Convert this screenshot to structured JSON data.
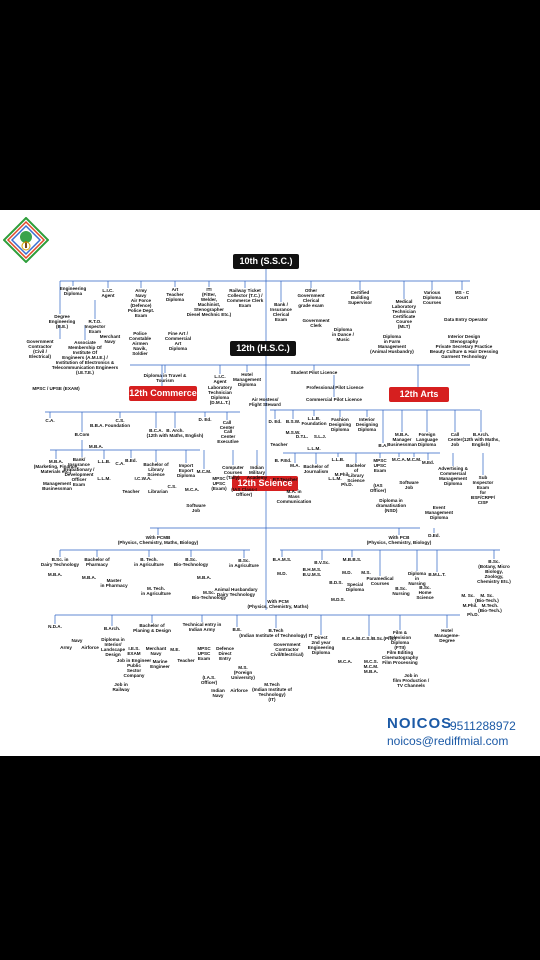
{
  "brand": {
    "name": "NOICOS",
    "phone": "9511288972",
    "email": "noicos@rediffmial.com"
  },
  "logo_icon": "tree-globe-logo-icon",
  "headers": {
    "ssc": "10th (S.S.C.)",
    "hsc": "12th (H.S.C.)",
    "commerce": "12th Commerce",
    "arts": "12th Arts",
    "science": "12th Science"
  },
  "colors": {
    "dark": "#111111",
    "red": "#d61f1f",
    "brand": "#1c5aa6",
    "years": "#cc0000"
  },
  "nodes": [
    {
      "id": "eng_dip",
      "text": "Engineering\nDiploma"
    },
    {
      "id": "lic1",
      "text": "L.I.C.\nAgent"
    },
    {
      "id": "army1",
      "text": "Army\nNavy\nAir Force\n(Defence)\nPolice Dept.\nExam"
    },
    {
      "id": "art_teacher",
      "text": "Art\nTeacher\nDiploma"
    },
    {
      "id": "iti",
      "text": "ITI\n(Fitter,\nWelder,\nMachinist,\nStenographer\nDiesel Mechnic Etc.)"
    },
    {
      "id": "railway",
      "text": "Railway Ticket\nCollector (T.C.) /\nCommerce Clerk\nExam"
    },
    {
      "id": "bank1",
      "text": "Bank /\nInsurance\nClerical\nExam"
    },
    {
      "id": "govt",
      "text": "Other\nGovernment\nClerical\ngrade exam"
    },
    {
      "id": "cert_bs",
      "text": "Certified\nBuilding\nSupervisor"
    },
    {
      "id": "various",
      "text": "Various\nDiploma\nCourses"
    },
    {
      "id": "msc_course",
      "text": "MS - C\nCourt"
    },
    {
      "id": "med_lab",
      "text": "Medical\nLaboratory\nTechnician\nCertificate\nCourse\n(MLT)"
    },
    {
      "id": "data_entry",
      "text": "Data Entry Operator"
    },
    {
      "id": "interior",
      "text": "Interior Design\nStenography\nPrivate Secretary Practice\nBeauty Culture & Hair Dressing\nGarment Technology"
    },
    {
      "id": "farm",
      "text": "Diploma\nin Farm\nManagement\n(Animal Husbandry)"
    },
    {
      "id": "dance",
      "text": "Diploma\nin Dance /\nMusic"
    },
    {
      "id": "gclerk",
      "text": "Government\nClerk"
    },
    {
      "id": "degree_eng",
      "text": "Degree\nEngineering\n(B.E.)"
    },
    {
      "id": "rto",
      "text": "R.T.O.\nInspector\nExam"
    },
    {
      "id": "merchant1",
      "text": "Merchant\nNavy"
    },
    {
      "id": "police",
      "text": "Police\nConstable\nAirmen\nNavik,\nSoldier"
    },
    {
      "id": "fine_art",
      "text": "Fine Art /\nCommercial\nArt\nDiploma"
    },
    {
      "id": "contractor1",
      "text": "Government\nContractor\n(Civil /\nElectrical)"
    },
    {
      "id": "associate",
      "text": "Associate\nMembership Of\nInstitute Of\nEngineers (A.M.I.E.) /\nInstitution of Electronics &\nTelecommunication Engineers\n(I.E.T.E.)"
    },
    {
      "id": "mpsc1",
      "text": "MPSC / UPSE (EXAM)"
    },
    {
      "id": "travel",
      "text": "Diploma in Travel &\nTourism"
    },
    {
      "id": "lic2",
      "text": "L.I.C.\nAgent"
    },
    {
      "id": "hotel",
      "text": "Hotel\nManagement\nDiploma"
    },
    {
      "id": "dmlt",
      "text": "Laboratory\nTechnician\nDiploma\n(D.M.L.T.)"
    },
    {
      "id": "air_hostess",
      "text": "Air Hostess/\nFlight Steward"
    },
    {
      "id": "pilot1",
      "text": "Student Pilot Licence"
    },
    {
      "id": "pilot2",
      "text": "Professional Pilot Licence"
    },
    {
      "id": "pilot3",
      "text": "Commercial Pilot Licence"
    },
    {
      "id": "ca",
      "text": "C.A."
    },
    {
      "id": "cs",
      "text": "C.S."
    },
    {
      "id": "bba",
      "text": "B.B.A. Foundation"
    },
    {
      "id": "bcom",
      "text": "B.Com"
    },
    {
      "id": "mba1",
      "text": "M.B.A."
    },
    {
      "id": "bca1",
      "text": "B.C.A."
    },
    {
      "id": "barch1",
      "text": "B. Arch.\n(12th with Maths, English)"
    },
    {
      "id": "ded1",
      "text": "D. Ed."
    },
    {
      "id": "callc1",
      "text": "Call\nCenter"
    },
    {
      "id": "cc_exec",
      "text": "Call\nCenter\nExecutive"
    },
    {
      "id": "bank2",
      "text": "Bank/\nInsurance\nProbationary /\nDevelopment\nOfficer\nExam"
    },
    {
      "id": "llb1",
      "text": "L.L.B."
    },
    {
      "id": "llm1",
      "text": "L.L.M."
    },
    {
      "id": "bed1",
      "text": "B.Ed."
    },
    {
      "id": "ca2",
      "text": "C.A."
    },
    {
      "id": "icwa",
      "text": "I.C.W.A."
    },
    {
      "id": "teacher1",
      "text": "Teacher"
    },
    {
      "id": "blib",
      "text": "Bachelor of\nLibrary\nScience"
    },
    {
      "id": "librarian",
      "text": "Librarian"
    },
    {
      "id": "import",
      "text": "Import\nExport\nDiploma"
    },
    {
      "id": "cs2",
      "text": "C.S."
    },
    {
      "id": "mcm",
      "text": "M.C.M."
    },
    {
      "id": "mca1",
      "text": "M.C.A."
    },
    {
      "id": "computer",
      "text": "Computer\nCourses\n(Tally)"
    },
    {
      "id": "military",
      "text": "Indian\nMilitary\nAcademy"
    },
    {
      "id": "mpsc2",
      "text": "MPSC\nUPSC\n(Exam)"
    },
    {
      "id": "ias1",
      "text": "(IAS Class-I\nOfficer)"
    },
    {
      "id": "software1",
      "text": "Software\nJob"
    },
    {
      "id": "mba_mkt",
      "text": "M.B.A.\n(Marketing, Finance,\nMaterials etc.)"
    },
    {
      "id": "mgmt",
      "text": "Management\nBusinessman"
    },
    {
      "id": "ded2",
      "text": "D. Ed."
    },
    {
      "id": "bsw",
      "text": "B.S.W."
    },
    {
      "id": "msw",
      "text": "M.S.W."
    },
    {
      "id": "teacher2",
      "text": "Teacher"
    },
    {
      "id": "llb2",
      "text": "L.L.B.\nFoundation"
    },
    {
      "id": "dtl",
      "text": "D.T.L."
    },
    {
      "id": "slj",
      "text": "S.L.J."
    },
    {
      "id": "llm2",
      "text": "L.L.M."
    },
    {
      "id": "fashion",
      "text": "Fashion\nDesigning\nDiploma"
    },
    {
      "id": "interior2",
      "text": "Interior\nDesigning\nDiploma"
    },
    {
      "id": "ba",
      "text": "B.A."
    },
    {
      "id": "mba2",
      "text": "M.B.A.\nManager\nBusinessman"
    },
    {
      "id": "foreign",
      "text": "Foreign\nLanguage\nDiploma"
    },
    {
      "id": "callc2",
      "text": "Call\nCenter\nJob"
    },
    {
      "id": "barch2",
      "text": "B.Arch.\n(12th with Maths,\nEnglish)"
    },
    {
      "id": "bped",
      "text": "B. P.Ed."
    },
    {
      "id": "pt",
      "text": "P.T.Teacher"
    },
    {
      "id": "ma1",
      "text": "M.A."
    },
    {
      "id": "journalism",
      "text": "Bachelor of\nJournalism"
    },
    {
      "id": "mass",
      "text": "M.A. in\nMass\nCommunication"
    },
    {
      "id": "llb3",
      "text": "L.L.B."
    },
    {
      "id": "llm3",
      "text": "L.L.M."
    },
    {
      "id": "bls",
      "text": "Bachelor\nof\nLibrary\nScience"
    },
    {
      "id": "mphil",
      "text": "M.Phil."
    },
    {
      "id": "phd1",
      "text": "Ph.D."
    },
    {
      "id": "mpsc3",
      "text": "MPSC\nUPSC\nExam"
    },
    {
      "id": "ias2",
      "text": "(IAS\nOfficer)"
    },
    {
      "id": "drama",
      "text": "Diploma in\ndramatisation\n(NSD)"
    },
    {
      "id": "mca2",
      "text": "M.C.A."
    },
    {
      "id": "mcm2",
      "text": "M.C.M."
    },
    {
      "id": "med1",
      "text": "M.Ed."
    },
    {
      "id": "software2",
      "text": "Software\nJob"
    },
    {
      "id": "advert",
      "text": "Advertising &\nCommercial\nManagement\nDiploma"
    },
    {
      "id": "event",
      "text": "Event\nManagement\nDiploma"
    },
    {
      "id": "subinsp",
      "text": "Sub\nInspector\nExam\nfor\nBSF/CRPF/\nCISF"
    },
    {
      "id": "pcmb",
      "text": "With PCMB\n(Physics, Chemistry, Maths, Biology)"
    },
    {
      "id": "pcb",
      "text": "With PCB\n(Physics, Chemistry, Biology)"
    },
    {
      "id": "ded3",
      "text": "D.Ed."
    },
    {
      "id": "bsc_dairy",
      "text": "B.Sc. in\nDairy Technology"
    },
    {
      "id": "mba3",
      "text": "M.B.A."
    },
    {
      "id": "bpharm",
      "text": "Bachelor of\nPharmacy"
    },
    {
      "id": "mba4",
      "text": "M.B.A."
    },
    {
      "id": "mpharm",
      "text": "Master\nin Pharmacy"
    },
    {
      "id": "btech_agri",
      "text": "B. Tech.\nin Agriculture"
    },
    {
      "id": "mtech_agri",
      "text": "M. Tech.\nin Agriculture"
    },
    {
      "id": "bsc_bio",
      "text": "B.Sc.\nBio-Technology"
    },
    {
      "id": "mba5",
      "text": "M.B.A."
    },
    {
      "id": "msc_bio",
      "text": "M.Sc.\nBio-Technology"
    },
    {
      "id": "bsc_agri",
      "text": "B.Sc.\nin Agriculture"
    },
    {
      "id": "animal",
      "text": "Animal Husbandary\nDairy Technology"
    },
    {
      "id": "pcm",
      "text": "With PCM\n(Physics, Chemistry, Maths)"
    },
    {
      "id": "bams",
      "text": "B.A.M.S."
    },
    {
      "id": "md1",
      "text": "M.D."
    },
    {
      "id": "bhms",
      "text": "B.H.M.S.\nB.U.M.S."
    },
    {
      "id": "bvsc",
      "text": "B.V.Sc."
    },
    {
      "id": "mbbs",
      "text": "M.B.B.S."
    },
    {
      "id": "md2",
      "text": "M.D."
    },
    {
      "id": "ms1",
      "text": "M.S."
    },
    {
      "id": "bds",
      "text": "B.D.S."
    },
    {
      "id": "mds",
      "text": "M.D.S."
    },
    {
      "id": "special",
      "text": "Special\nDiploma"
    },
    {
      "id": "paramed",
      "text": "Paramedical\nCourses"
    },
    {
      "id": "nursing",
      "text": "Diploma\nin\nNursing"
    },
    {
      "id": "bsc_nurs",
      "text": "B.Sc.\nNursing"
    },
    {
      "id": "home",
      "text": "B.Sc.\nHome\nScience"
    },
    {
      "id": "bmlt",
      "text": "B.M.L.T."
    },
    {
      "id": "bsc_bot",
      "text": "B.Sc.\n(Botany, Micro Biology,\nZoology,\nChemistry Etc.)"
    },
    {
      "id": "msc_a",
      "text": "M. Sc."
    },
    {
      "id": "msc_b",
      "text": "M. Sc.\n(Bio-Tech.)"
    },
    {
      "id": "mphil2",
      "text": "M.Phil."
    },
    {
      "id": "mtech_bio",
      "text": "M.Tech.\n(Bio-Tech.)"
    },
    {
      "id": "phd2",
      "text": "Ph.D."
    },
    {
      "id": "nda",
      "text": "N.D.A."
    },
    {
      "id": "army2",
      "text": "Army"
    },
    {
      "id": "airforce1",
      "text": "Airforce"
    },
    {
      "id": "navy2",
      "text": "Navy"
    },
    {
      "id": "barch3",
      "text": "B.Arch."
    },
    {
      "id": "dip_int",
      "text": "Diploma in\nInterior/\nLandscape\nDesign"
    },
    {
      "id": "bplan",
      "text": "Bachelor of\nPlaning & Design"
    },
    {
      "id": "ies",
      "text": "I.E.S.\nEXAM"
    },
    {
      "id": "merchant2",
      "text": "Merchant\nNavy"
    },
    {
      "id": "marine",
      "text": "Marine\nEngineer"
    },
    {
      "id": "public_job",
      "text": "Job in Engineer\nPublic\nSector\nCompany"
    },
    {
      "id": "job_rail",
      "text": "Job in\nRailway"
    },
    {
      "id": "me",
      "text": "M.E."
    },
    {
      "id": "teacher3",
      "text": "Teacher"
    },
    {
      "id": "army_tech",
      "text": "Technical entry in\nIndian Army"
    },
    {
      "id": "mpsc4",
      "text": "MPSC\nUPSC\nExam"
    },
    {
      "id": "ias3",
      "text": "(I.A.S.\nOfficer)"
    },
    {
      "id": "defence",
      "text": "Defence\nDirect\nEntry"
    },
    {
      "id": "indian_navy",
      "text": "Indian\nNavy"
    },
    {
      "id": "airforce2",
      "text": "Airforce"
    },
    {
      "id": "ms_foreign",
      "text": "M.S.\n(Foreign\nUniversity)"
    },
    {
      "id": "mtech1",
      "text": "M.Tech\n(Indian Institute of\nTechnology)\n(IT)"
    },
    {
      "id": "be",
      "text": "B.E."
    },
    {
      "id": "btech",
      "text": "B.Tech\n(Indian Institute of Technology) IT"
    },
    {
      "id": "contractor2",
      "text": "Government\nContractor\nCivil/Electrical)"
    },
    {
      "id": "direct2",
      "text": "Direct\n2nd year\nEngineering\nDiploma"
    },
    {
      "id": "mca3",
      "text": "M.C.A."
    },
    {
      "id": "bca2",
      "text": "B.C.A./B.C.S./B.Sc.(Phy.)"
    },
    {
      "id": "mcs",
      "text": "M.C.S.\nM.C.M.\nM.B.A."
    },
    {
      "id": "film",
      "text": "Film &\nTelevision\nDiploma\n(FTII)\nFilm Editing\nCinematography\nFilm Processing"
    },
    {
      "id": "film_job",
      "text": "Job in\nfilm Production /\nTV Channels"
    },
    {
      "id": "hotel2",
      "text": "Hotel\nManageme-\nDegree"
    }
  ]
}
